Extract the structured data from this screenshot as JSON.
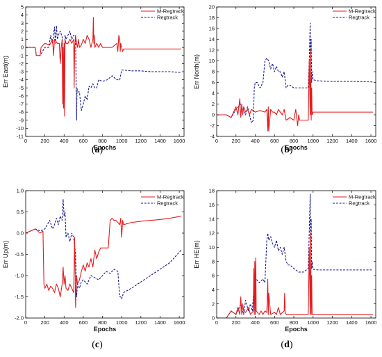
{
  "chart_data": [
    {
      "type": "line",
      "panel_label": "a",
      "xlabel": "Epochs",
      "ylabel": "Err East(m)",
      "xlim": [
        0,
        1650
      ],
      "ylim": [
        -11,
        5
      ],
      "xticks": [
        0,
        200,
        400,
        600,
        800,
        1000,
        1200,
        1400,
        1600
      ],
      "yticks": [
        -11,
        -10,
        -9,
        -8,
        -7,
        -6,
        -5,
        -4,
        -3,
        -2,
        -1,
        0,
        1,
        2,
        3,
        4,
        5
      ],
      "legend_position": "top-right",
      "colors": {
        "M-Regtrack": "#e41a1c",
        "Regtrack": "#1a1a8c"
      },
      "series": [
        {
          "name": "M-Regtrack",
          "style": "solid",
          "x": [
            0,
            100,
            110,
            150,
            160,
            200,
            250,
            280,
            290,
            300,
            330,
            350,
            360,
            370,
            380,
            385,
            390,
            395,
            400,
            405,
            410,
            420,
            440,
            460,
            480,
            500,
            505,
            510,
            520,
            530,
            540,
            550,
            560,
            580,
            600,
            620,
            640,
            660,
            680,
            700,
            705,
            710,
            715,
            720,
            740,
            760,
            780,
            800,
            850,
            900,
            950,
            960,
            970,
            980,
            985,
            990,
            1000,
            1010,
            1020,
            1100,
            1200,
            1400,
            1620
          ],
          "y": [
            0,
            0,
            -1,
            -1,
            0,
            0.5,
            0.3,
            1,
            -1,
            1,
            0.5,
            0.5,
            -2,
            0,
            1,
            -7,
            0,
            -7.5,
            0.5,
            -8.5,
            1,
            0.5,
            0.5,
            1,
            0.5,
            1,
            -5,
            0,
            1.5,
            0.5,
            0,
            1,
            0,
            0.3,
            1,
            0.5,
            1.5,
            1,
            0,
            1,
            3.7,
            0.5,
            1.5,
            0,
            0.5,
            0,
            0.5,
            0,
            0,
            0,
            0.5,
            -0.5,
            1.5,
            1,
            -0.5,
            0.5,
            0,
            -0.5,
            -0.2,
            -0.2,
            -0.2,
            -0.2,
            -0.2
          ]
        },
        {
          "name": "Regtrack",
          "style": "dash",
          "x": [
            0,
            100,
            110,
            150,
            200,
            240,
            260,
            280,
            300,
            310,
            320,
            330,
            340,
            360,
            380,
            390,
            395,
            400,
            410,
            420,
            440,
            460,
            480,
            500,
            520,
            530,
            535,
            540,
            560,
            580,
            600,
            620,
            640,
            660,
            680,
            700,
            720,
            740,
            760,
            800,
            850,
            900,
            950,
            980,
            1000,
            1020,
            1100,
            1200,
            1300,
            1400,
            1500,
            1620
          ],
          "y": [
            0,
            0,
            -1,
            -1,
            0,
            0,
            1.5,
            0.5,
            2.5,
            0.5,
            2.7,
            1,
            1.5,
            2,
            1.3,
            -5,
            -5.5,
            -5,
            1.5,
            1,
            1.5,
            2,
            1,
            1.5,
            1.3,
            -9,
            -5,
            -5.5,
            -5.5,
            -7.8,
            -7,
            -6,
            -6.5,
            -4.8,
            -5,
            -4.5,
            -5,
            -5,
            -4,
            -4.2,
            -4,
            -3.5,
            -4,
            -4,
            -2.8,
            -2.8,
            -2.9,
            -2.9,
            -3,
            -3,
            -3,
            -3.1
          ]
        }
      ]
    },
    {
      "type": "line",
      "panel_label": "b",
      "xlabel": "Epochs",
      "ylabel": "Err North(m)",
      "xlim": [
        0,
        1650
      ],
      "ylim": [
        -4,
        20
      ],
      "xticks": [
        0,
        200,
        400,
        600,
        800,
        1000,
        1200,
        1400,
        1600
      ],
      "yticks": [
        -4,
        -2,
        0,
        2,
        4,
        6,
        8,
        10,
        12,
        14,
        16,
        18,
        20
      ],
      "legend_position": "top-right",
      "colors": {
        "M-Regtrack": "#e41a1c",
        "Regtrack": "#1a1a8c"
      },
      "series": [
        {
          "name": "M-Regtrack",
          "style": "solid",
          "x": [
            0,
            100,
            150,
            200,
            220,
            240,
            250,
            260,
            270,
            280,
            300,
            320,
            340,
            360,
            400,
            450,
            500,
            520,
            530,
            535,
            540,
            560,
            580,
            600,
            620,
            640,
            660,
            680,
            700,
            720,
            760,
            800,
            820,
            840,
            850,
            860,
            900,
            950,
            960,
            970,
            975,
            980,
            985,
            990,
            1000,
            1050,
            1200,
            1400,
            1620
          ],
          "y": [
            0,
            0,
            -0.5,
            1.5,
            0,
            3,
            -0.5,
            2,
            0,
            1.5,
            0.5,
            1,
            0,
            1,
            0.5,
            0.8,
            0.5,
            1,
            -3,
            1.5,
            -3,
            1,
            0.5,
            0.5,
            0,
            1,
            0.5,
            0,
            1,
            -1,
            -0.5,
            -1,
            1,
            -2,
            0,
            -1,
            -1,
            -1,
            10,
            0,
            12,
            -1,
            5,
            0,
            0.5,
            0.5,
            0.5,
            0.5,
            0.5
          ]
        },
        {
          "name": "Regtrack",
          "style": "dash",
          "x": [
            0,
            100,
            150,
            200,
            250,
            300,
            320,
            340,
            360,
            380,
            390,
            400,
            420,
            450,
            480,
            500,
            520,
            540,
            560,
            580,
            600,
            620,
            640,
            660,
            680,
            700,
            720,
            740,
            760,
            800,
            850,
            900,
            950,
            960,
            970,
            975,
            980,
            985,
            990,
            1000,
            1050,
            1200,
            1400,
            1620
          ],
          "y": [
            0,
            0,
            -0.5,
            1,
            2,
            0,
            1.5,
            0,
            -1.5,
            -1,
            5,
            6,
            6,
            5,
            6,
            10,
            10.5,
            10,
            8.5,
            9.5,
            8,
            9,
            8,
            8,
            7,
            8,
            5,
            5.5,
            5.5,
            5,
            5,
            5,
            5,
            10,
            17,
            5,
            14,
            6,
            8,
            6.5,
            6.3,
            6.2,
            6.2,
            6.1
          ]
        }
      ]
    },
    {
      "type": "line",
      "panel_label": "c",
      "xlabel": "Epochs",
      "ylabel": "Err Up(m)",
      "xlim": [
        0,
        1650
      ],
      "ylim": [
        -2.0,
        1.0
      ],
      "xticks": [
        0,
        200,
        400,
        600,
        800,
        1000,
        1200,
        1400,
        1600
      ],
      "yticks": [
        -2.0,
        -1.5,
        -1.0,
        -0.5,
        0.0,
        0.5,
        1.0
      ],
      "ytick_labels": [
        "-2.0",
        "-1.5",
        "-1.0",
        "-0.5",
        "0.0",
        "0.5",
        "1.0"
      ],
      "legend_position": "top-right",
      "colors": {
        "M-Regtrack": "#e41a1c",
        "Regtrack": "#1a1a8c"
      },
      "series": [
        {
          "name": "M-Regtrack",
          "style": "solid",
          "x": [
            0,
            50,
            100,
            150,
            180,
            190,
            200,
            220,
            240,
            260,
            280,
            300,
            320,
            340,
            360,
            380,
            390,
            400,
            410,
            420,
            440,
            460,
            480,
            500,
            510,
            520,
            530,
            540,
            560,
            580,
            600,
            620,
            640,
            660,
            680,
            700,
            720,
            740,
            760,
            780,
            800,
            820,
            840,
            860,
            880,
            900,
            920,
            940,
            960,
            980,
            990,
            1000,
            1010,
            1020,
            1100,
            1200,
            1300,
            1400,
            1500,
            1620
          ],
          "y": [
            0,
            0.05,
            0.1,
            0,
            0.05,
            -1.2,
            -1.3,
            -1.2,
            -1.35,
            -1.25,
            -1.3,
            -1.4,
            -1.2,
            -1.3,
            -1.5,
            -1.2,
            -0.8,
            -1.2,
            -1.0,
            -1.3,
            -1.35,
            -1.2,
            -1.3,
            -1.4,
            -0.1,
            -1.75,
            -1.0,
            -1.2,
            -1.1,
            -0.9,
            -0.75,
            -0.9,
            -0.7,
            -0.8,
            -0.6,
            -0.8,
            -0.4,
            -0.6,
            -0.45,
            -0.35,
            -0.35,
            -0.35,
            -0.35,
            -0.35,
            0.3,
            0.35,
            0.3,
            0.3,
            0.25,
            0.2,
            0.35,
            -0.1,
            0.3,
            0.2,
            0.25,
            0.28,
            0.3,
            0.32,
            0.35,
            0.4
          ]
        },
        {
          "name": "Regtrack",
          "style": "dash",
          "x": [
            0,
            50,
            100,
            150,
            200,
            250,
            280,
            300,
            320,
            340,
            360,
            380,
            390,
            400,
            410,
            420,
            440,
            460,
            480,
            500,
            520,
            530,
            540,
            560,
            580,
            600,
            640,
            680,
            720,
            760,
            800,
            840,
            880,
            920,
            960,
            980,
            990,
            1000,
            1020,
            1100,
            1200,
            1300,
            1400,
            1500,
            1620
          ],
          "y": [
            0,
            0.05,
            0.1,
            0.05,
            0.1,
            0.3,
            0.1,
            0.2,
            0.35,
            0.2,
            0.4,
            0.3,
            0.8,
            0.4,
            0.5,
            -0.1,
            0,
            -0.2,
            0,
            -0.1,
            -0.5,
            -1.5,
            -1.2,
            -1.3,
            -1.15,
            -1.1,
            -1.2,
            -1.0,
            -1.05,
            -1.1,
            -1.0,
            -0.9,
            -0.95,
            -0.85,
            -0.9,
            -1.5,
            -1.5,
            -1.55,
            -1.4,
            -1.3,
            -1.15,
            -1.0,
            -0.85,
            -0.7,
            -0.4
          ]
        }
      ]
    },
    {
      "type": "line",
      "panel_label": "d",
      "xlabel": "Epochs",
      "ylabel": "Err HE(m)",
      "xlim": [
        0,
        1650
      ],
      "ylim": [
        0,
        18
      ],
      "xticks": [
        0,
        200,
        400,
        600,
        800,
        1000,
        1200,
        1400,
        1600
      ],
      "yticks": [
        0,
        2,
        4,
        6,
        8,
        10,
        12,
        14,
        16,
        18
      ],
      "legend_position": "top-right",
      "colors": {
        "M-Regtrack": "#e41a1c",
        "Regtrack": "#1a1a8c"
      },
      "series": [
        {
          "name": "M-Regtrack",
          "style": "solid",
          "x": [
            0,
            100,
            150,
            200,
            220,
            240,
            250,
            260,
            270,
            280,
            300,
            330,
            350,
            380,
            385,
            390,
            395,
            400,
            405,
            410,
            440,
            460,
            480,
            500,
            520,
            530,
            535,
            540,
            560,
            600,
            620,
            640,
            660,
            700,
            705,
            710,
            720,
            760,
            800,
            850,
            900,
            950,
            960,
            970,
            975,
            980,
            985,
            990,
            1000,
            1050,
            1200,
            1400,
            1620
          ],
          "y": [
            0,
            0,
            1,
            0.5,
            1.5,
            0.5,
            3,
            0.5,
            2,
            1,
            0.8,
            1.5,
            0.5,
            1,
            7,
            0.5,
            8,
            0.5,
            8.5,
            1,
            0.5,
            1,
            0.5,
            1,
            0.8,
            5.5,
            0.5,
            3.5,
            0.5,
            0.8,
            0.5,
            1.5,
            0.5,
            1,
            3.5,
            0.8,
            0.5,
            0.5,
            0.5,
            0.5,
            0.5,
            0.5,
            10,
            0.5,
            12,
            0.5,
            6,
            0.5,
            0.5,
            0.5,
            0.5,
            0.5,
            0.5
          ]
        },
        {
          "name": "Regtrack",
          "style": "dash",
          "x": [
            0,
            100,
            150,
            200,
            250,
            280,
            300,
            330,
            350,
            370,
            380,
            390,
            395,
            400,
            410,
            440,
            480,
            500,
            520,
            530,
            540,
            560,
            580,
            600,
            620,
            640,
            660,
            680,
            700,
            720,
            740,
            760,
            800,
            850,
            900,
            950,
            960,
            970,
            975,
            980,
            985,
            990,
            1000,
            1050,
            1200,
            1400,
            1620
          ],
          "y": [
            0,
            0,
            1,
            0.5,
            2,
            0.5,
            2.5,
            1,
            2,
            1,
            3,
            5.5,
            5,
            6,
            5.5,
            5,
            5.5,
            5,
            11,
            12,
            11,
            11.5,
            10.5,
            10,
            11,
            9.5,
            10,
            9,
            10,
            8,
            7.5,
            7.5,
            7,
            6.5,
            6.5,
            7,
            12,
            17.5,
            6.5,
            14,
            7,
            8,
            6.9,
            6.8,
            6.8,
            6.8,
            6.8
          ]
        }
      ]
    }
  ]
}
